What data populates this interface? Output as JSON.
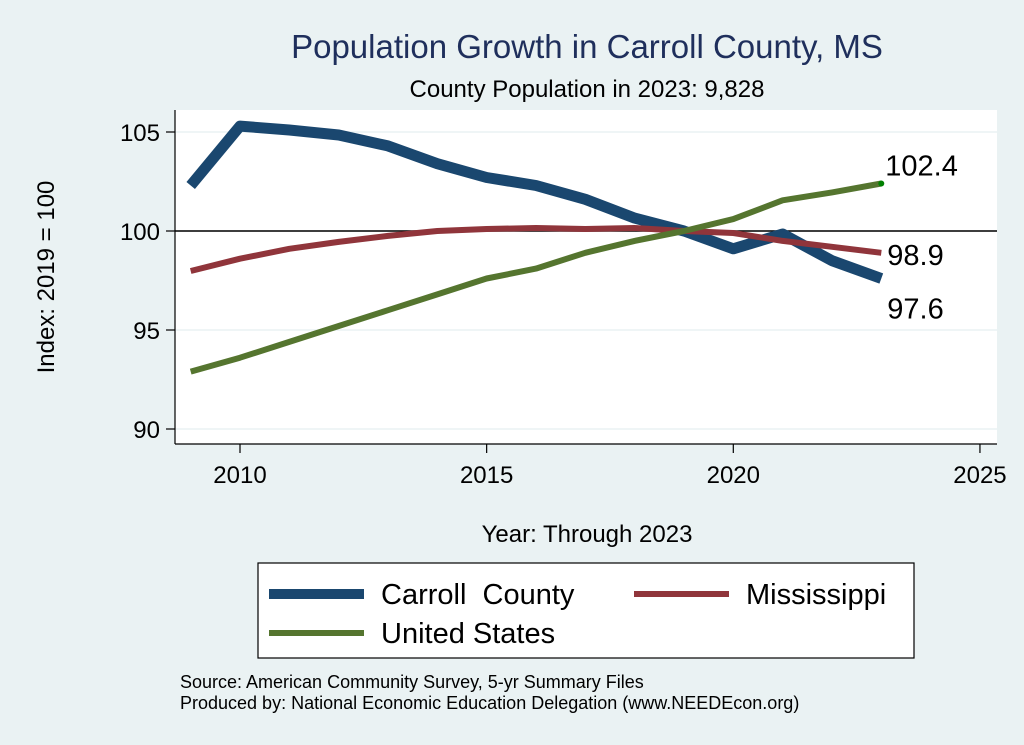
{
  "chart_data": {
    "type": "line",
    "title": "Population Growth in Carroll County, MS",
    "subtitle": "County Population in 2023: 9,828",
    "xlabel": "Year: Through 2023",
    "ylabel": "Index: 2019 = 100",
    "xlim": [
      2009,
      2025.3
    ],
    "ylim": [
      89.2,
      106.1
    ],
    "xticks": [
      2010,
      2015,
      2020,
      2025
    ],
    "yticks": [
      90,
      95,
      100,
      105
    ],
    "grid": true,
    "reference_line": 100,
    "x": [
      2009,
      2010,
      2011,
      2012,
      2013,
      2014,
      2015,
      2016,
      2017,
      2018,
      2019,
      2020,
      2021,
      2022,
      2023
    ],
    "series": [
      {
        "name": "Carroll  County",
        "color": "#1a476f",
        "width": "thick",
        "values": [
          102.3,
          105.3,
          105.1,
          104.85,
          104.3,
          103.4,
          102.7,
          102.3,
          101.6,
          100.65,
          100.0,
          99.1,
          99.85,
          98.5,
          97.6
        ],
        "end_label": "97.6"
      },
      {
        "name": "Mississippi",
        "color": "#90353b",
        "width": "medium",
        "values": [
          97.98,
          98.6,
          99.1,
          99.45,
          99.75,
          100.0,
          100.1,
          100.15,
          100.1,
          100.15,
          100.0,
          99.9,
          99.5,
          99.2,
          98.9
        ],
        "end_label": "98.9"
      },
      {
        "name": "United States",
        "color": "#55752f",
        "width": "medium",
        "values": [
          92.9,
          93.6,
          94.4,
          95.2,
          96.0,
          96.8,
          97.6,
          98.1,
          98.9,
          99.5,
          100.0,
          100.6,
          101.55,
          101.95,
          102.4
        ],
        "end_label": "102.4"
      }
    ],
    "legend": {
      "placement": "bottom",
      "entries": [
        "Carroll  County",
        "Mississippi",
        "United States"
      ]
    }
  },
  "footer": {
    "source": "Source: American Community Survey, 5-yr Summary Files",
    "produced_by": "Produced by: National Economic Education Delegation (www.NEEDEcon.org)"
  },
  "colors": {
    "background": "#eaf2f3",
    "plot_background": "#ffffff",
    "title": "#1f2f5c",
    "endpoint_marker": "#008000"
  }
}
